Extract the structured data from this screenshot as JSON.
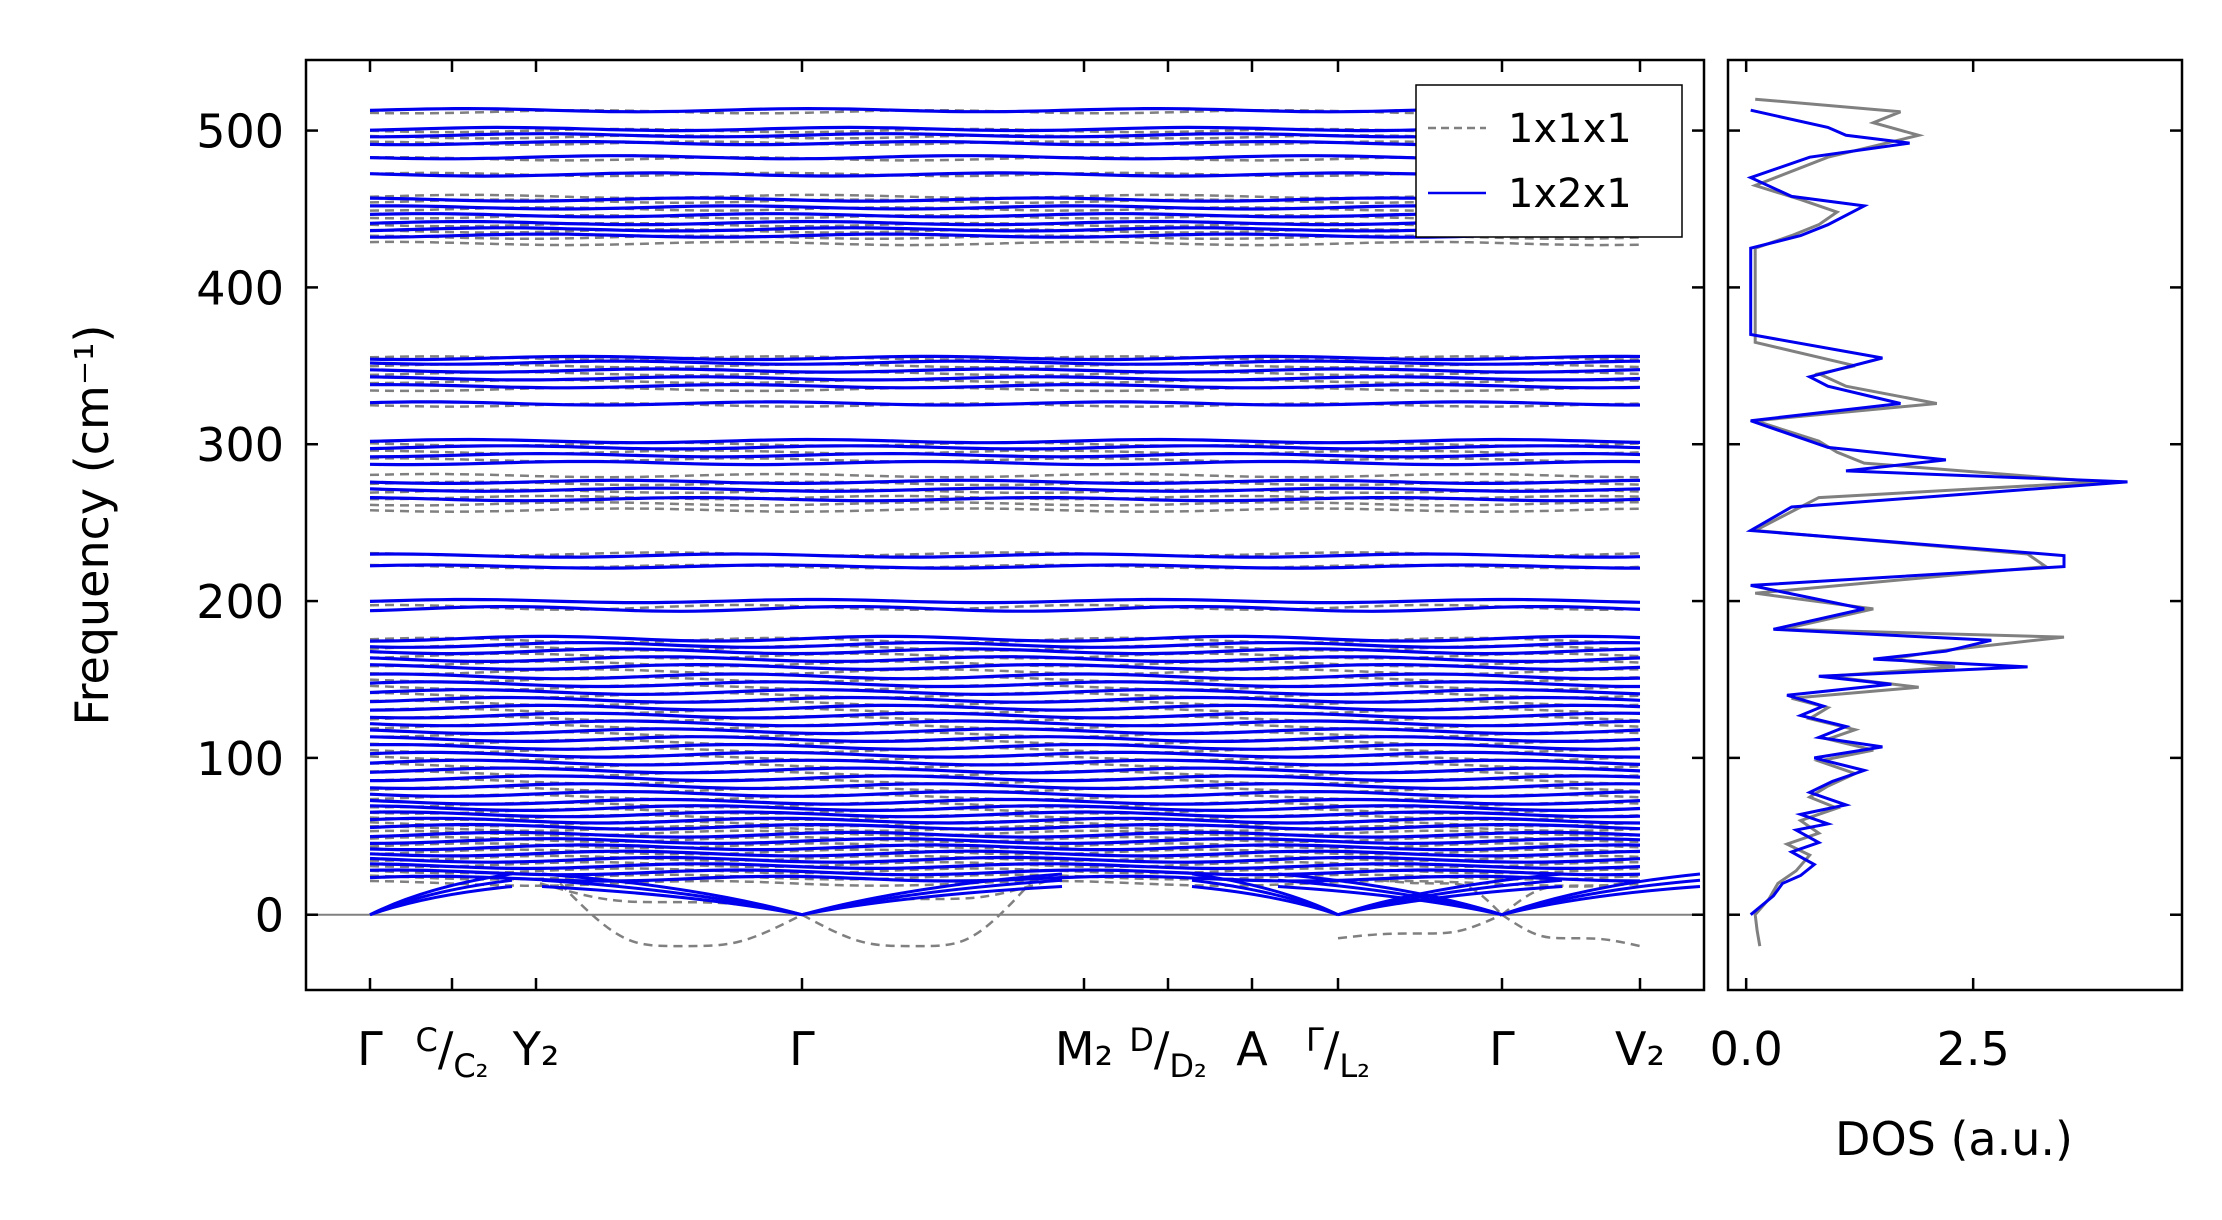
{
  "chart_data": [
    {
      "type": "line",
      "subplot": "phonon-dispersion",
      "ylabel": "Frequency (cm⁻¹)",
      "xlabel": "",
      "ylim": [
        -48,
        545
      ],
      "x_kpoints": [
        "Γ",
        "C/C₂",
        "Y₂",
        "Γ",
        "M₂",
        "D/D₂",
        "A",
        "Γ/L₂",
        "Γ",
        "V₂"
      ],
      "x_tick_labels": [
        {
          "main": "Γ",
          "sup": "",
          "sub": ""
        },
        {
          "main": "",
          "sup": "C",
          "sub": "C₂"
        },
        {
          "main": "Y₂",
          "sup": "",
          "sub": ""
        },
        {
          "main": "Γ",
          "sup": "",
          "sub": ""
        },
        {
          "main": "M₂",
          "sup": "",
          "sub": ""
        },
        {
          "main": "",
          "sup": "D",
          "sub": "D₂"
        },
        {
          "main": "A",
          "sup": "",
          "sub": ""
        },
        {
          "main": "",
          "sup": "Γ",
          "sub": "L₂"
        },
        {
          "main": "Γ",
          "sup": "",
          "sub": ""
        },
        {
          "main": "V₂",
          "sup": "",
          "sub": ""
        }
      ],
      "yticks": [
        0,
        100,
        200,
        300,
        400,
        500
      ],
      "ytick_labels": [
        "0",
        "100",
        "200",
        "300",
        "400",
        "500"
      ],
      "legend": {
        "placement": "top-right",
        "entries": [
          "1x1x1",
          "1x2x1"
        ]
      },
      "series": [
        {
          "name": "1x1x1",
          "style": "dashed",
          "color": "#808080",
          "flat_bands_cm1": [
            20,
            24,
            28,
            32,
            36,
            40,
            44,
            48,
            52,
            55,
            58,
            62,
            66,
            70,
            75,
            80,
            85,
            90,
            95,
            100,
            105,
            110,
            115,
            120,
            125,
            130,
            135,
            140,
            145,
            150,
            155,
            160,
            165,
            170,
            175,
            196,
            222,
            230,
            258,
            262,
            266,
            270,
            275,
            280,
            290,
            295,
            300,
            325,
            335,
            340,
            345,
            350,
            355,
            428,
            432,
            436,
            440,
            445,
            450,
            455,
            458,
            472,
            482,
            492,
            496,
            500,
            512
          ],
          "soft_mode_minimum_cm1": -20
        },
        {
          "name": "1x2x1",
          "style": "solid",
          "color": "#0000ee",
          "flat_bands_cm1": [
            23,
            27,
            31,
            35,
            39,
            43,
            47,
            51,
            56,
            60,
            64,
            68,
            72,
            77,
            82,
            87,
            92,
            97,
            102,
            107,
            112,
            117,
            122,
            127,
            132,
            137,
            142,
            147,
            152,
            158,
            163,
            168,
            172,
            176,
            195,
            200,
            222,
            229,
            265,
            271,
            276,
            288,
            293,
            298,
            302,
            326,
            337,
            342,
            347,
            352,
            355,
            433,
            437,
            441,
            446,
            451,
            456,
            472,
            483,
            492,
            497,
            501,
            513
          ],
          "acoustic_zero_points": [
            "Γ",
            "Γ",
            "Γ/L₂",
            "Γ"
          ]
        }
      ]
    },
    {
      "type": "line",
      "subplot": "density-of-states",
      "xlabel": "DOS (a.u.)",
      "xticks": [
        0,
        2.5
      ],
      "xtick_labels": [
        "0.0",
        "2.5"
      ],
      "xlim": [
        -0.2,
        4.8
      ],
      "ylim": [
        -48,
        545
      ],
      "series": [
        {
          "name": "1x1x1",
          "color": "#808080",
          "points": [
            [
              0.15,
              -20
            ],
            [
              0.12,
              -10
            ],
            [
              0.1,
              0
            ],
            [
              0.25,
              10
            ],
            [
              0.35,
              20
            ],
            [
              0.55,
              28
            ],
            [
              0.7,
              38
            ],
            [
              0.45,
              45
            ],
            [
              0.8,
              52
            ],
            [
              0.6,
              60
            ],
            [
              1.0,
              68
            ],
            [
              0.7,
              75
            ],
            [
              0.9,
              82
            ],
            [
              1.2,
              90
            ],
            [
              0.8,
              98
            ],
            [
              1.4,
              105
            ],
            [
              0.9,
              112
            ],
            [
              1.2,
              118
            ],
            [
              0.7,
              125
            ],
            [
              0.9,
              132
            ],
            [
              0.5,
              138
            ],
            [
              1.9,
              145
            ],
            [
              0.9,
              152
            ],
            [
              2.3,
              158
            ],
            [
              1.6,
              163
            ],
            [
              2.1,
              168
            ],
            [
              3.5,
              177
            ],
            [
              0.4,
              182
            ],
            [
              1.4,
              195
            ],
            [
              0.1,
              205
            ],
            [
              3.3,
              222
            ],
            [
              3.1,
              230
            ],
            [
              0.1,
              245
            ],
            [
              0.6,
              260
            ],
            [
              0.8,
              266
            ],
            [
              3.9,
              276
            ],
            [
              1.3,
              288
            ],
            [
              1.0,
              295
            ],
            [
              0.8,
              302
            ],
            [
              0.1,
              315
            ],
            [
              2.1,
              326
            ],
            [
              1.1,
              337
            ],
            [
              0.8,
              345
            ],
            [
              1.2,
              350
            ],
            [
              0.1,
              365
            ],
            [
              0.1,
              425
            ],
            [
              0.5,
              433
            ],
            [
              0.8,
              440
            ],
            [
              1.0,
              448
            ],
            [
              0.6,
              456
            ],
            [
              0.1,
              465
            ],
            [
              0.9,
              483
            ],
            [
              1.9,
              497
            ],
            [
              1.4,
              505
            ],
            [
              1.7,
              512
            ],
            [
              0.1,
              520
            ]
          ]
        },
        {
          "name": "1x2x1",
          "color": "#0000ee",
          "points": [
            [
              0.05,
              0
            ],
            [
              0.3,
              12
            ],
            [
              0.4,
              20
            ],
            [
              0.6,
              25
            ],
            [
              0.75,
              32
            ],
            [
              0.5,
              40
            ],
            [
              0.8,
              46
            ],
            [
              0.55,
              54
            ],
            [
              0.9,
              58
            ],
            [
              0.6,
              64
            ],
            [
              1.1,
              70
            ],
            [
              0.7,
              78
            ],
            [
              0.95,
              85
            ],
            [
              1.3,
              92
            ],
            [
              0.75,
              100
            ],
            [
              1.5,
              107
            ],
            [
              0.8,
              113
            ],
            [
              1.1,
              120
            ],
            [
              0.6,
              127
            ],
            [
              0.85,
              133
            ],
            [
              0.45,
              140
            ],
            [
              1.6,
              147
            ],
            [
              0.8,
              152
            ],
            [
              3.1,
              158
            ],
            [
              1.4,
              163
            ],
            [
              2.2,
              168
            ],
            [
              2.7,
              175
            ],
            [
              0.3,
              182
            ],
            [
              1.3,
              195
            ],
            [
              0.05,
              210
            ],
            [
              3.5,
              222
            ],
            [
              3.5,
              229
            ],
            [
              0.05,
              245
            ],
            [
              0.5,
              260
            ],
            [
              1.9,
              266
            ],
            [
              4.2,
              276
            ],
            [
              1.1,
              283
            ],
            [
              2.2,
              290
            ],
            [
              0.9,
              298
            ],
            [
              0.7,
              302
            ],
            [
              0.05,
              315
            ],
            [
              1.7,
              326
            ],
            [
              0.9,
              337
            ],
            [
              0.7,
              343
            ],
            [
              1.5,
              355
            ],
            [
              0.05,
              370
            ],
            [
              0.05,
              425
            ],
            [
              0.6,
              433
            ],
            [
              0.9,
              440
            ],
            [
              1.3,
              452
            ],
            [
              0.5,
              458
            ],
            [
              0.05,
              470
            ],
            [
              0.7,
              483
            ],
            [
              1.8,
              492
            ],
            [
              1.1,
              497
            ],
            [
              0.9,
              502
            ],
            [
              0.05,
              513
            ]
          ]
        }
      ]
    }
  ]
}
